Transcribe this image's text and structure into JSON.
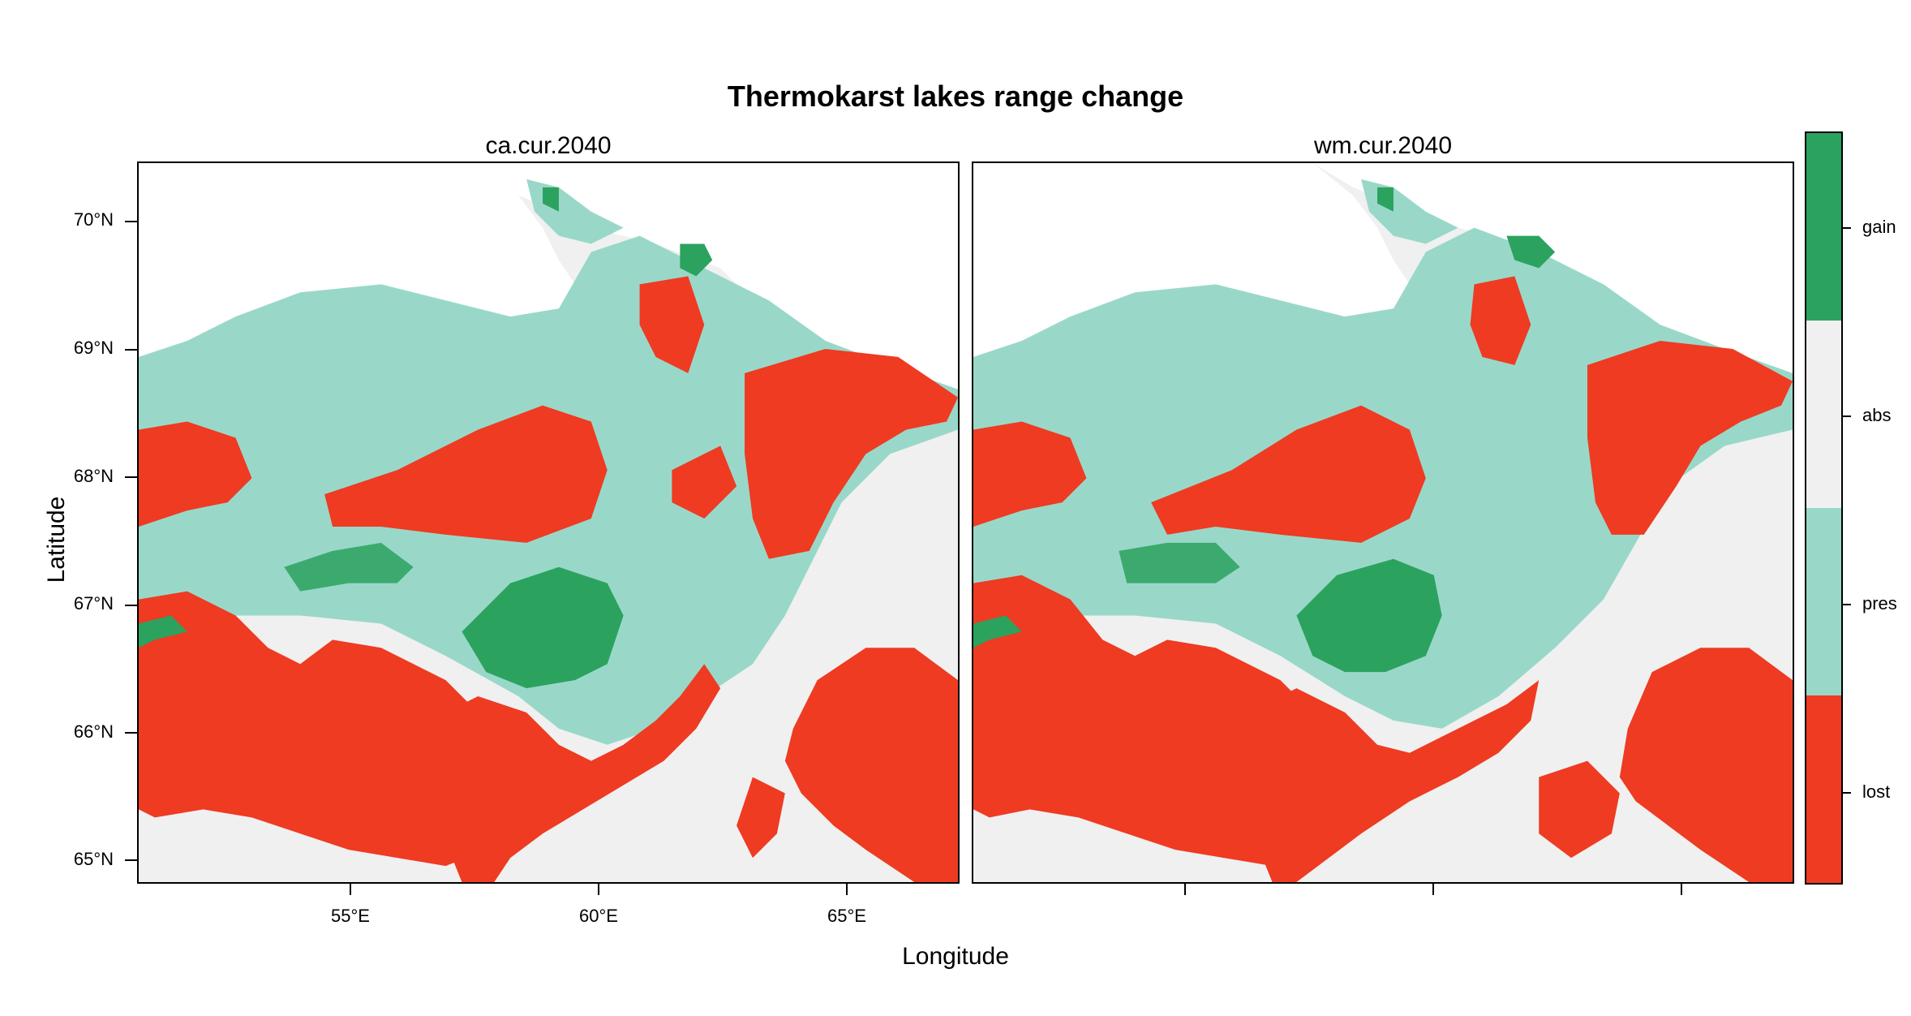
{
  "title": "Thermokarst lakes range change",
  "xlabel": "Longitude",
  "ylabel": "Latitude",
  "panels": [
    {
      "name": "ca.cur.2040"
    },
    {
      "name": "wm.cur.2040"
    }
  ],
  "y_ticks": [
    "70°N",
    "69°N",
    "68°N",
    "67°N",
    "66°N",
    "65°N"
  ],
  "x_ticks": [
    "55°E",
    "60°E",
    "65°E"
  ],
  "legend": {
    "categories": [
      "gain",
      "abs",
      "pres",
      "lost"
    ],
    "colors": {
      "gain": "#2CA25F",
      "abs": "#F0F0F0",
      "pres": "#99D8C9",
      "lost": "#EE3B22"
    }
  },
  "map": {
    "lon_range": [
      50.7,
      67.2
    ],
    "lat_range": [
      64.8,
      70.5
    ]
  }
}
